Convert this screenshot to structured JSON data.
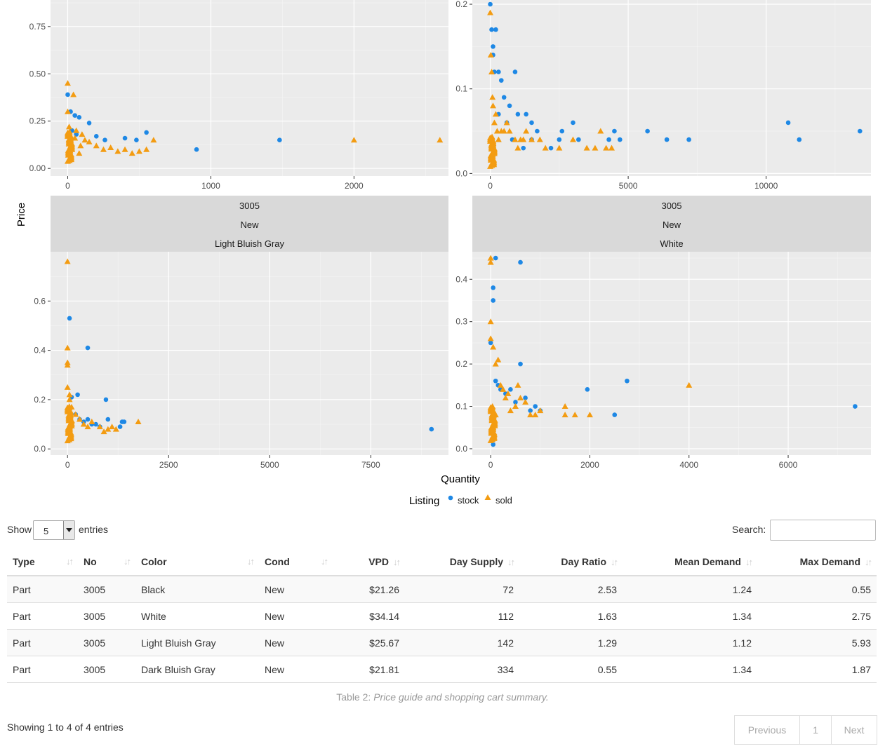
{
  "chart_data": {
    "type": "scatter",
    "ylabel": "Price",
    "xlabel": "Quantity",
    "legend": {
      "title": "Listing",
      "position": "bottom",
      "items": [
        {
          "name": "stock",
          "color": "#1e88e5",
          "shape": "circle"
        },
        {
          "name": "sold",
          "color": "#f39c12",
          "shape": "triangle"
        }
      ]
    },
    "panels": [
      {
        "id": "top-left",
        "strip": [],
        "xlim": [
          -120,
          2660
        ],
        "ylim": [
          -0.04,
          0.89
        ],
        "xticks": [
          0,
          1000,
          2000
        ],
        "yticks": [
          0,
          0.25,
          0.5,
          0.75
        ],
        "ytick_labels": [
          "0.00",
          "0.25",
          "0.50",
          "0.75"
        ],
        "stock": [
          [
            0,
            0.39
          ],
          [
            20,
            0.3
          ],
          [
            50,
            0.28
          ],
          [
            80,
            0.27
          ],
          [
            150,
            0.24
          ],
          [
            200,
            0.17
          ],
          [
            260,
            0.15
          ],
          [
            400,
            0.16
          ],
          [
            480,
            0.15
          ],
          [
            550,
            0.19
          ],
          [
            900,
            0.1
          ],
          [
            1480,
            0.15
          ],
          [
            30,
            0.2
          ],
          [
            60,
            0.18
          ],
          [
            10,
            0.13
          ]
        ],
        "sold": [
          [
            0,
            0.45
          ],
          [
            0,
            0.3
          ],
          [
            10,
            0.22
          ],
          [
            40,
            0.39
          ],
          [
            60,
            0.2
          ],
          [
            100,
            0.18
          ],
          [
            120,
            0.15
          ],
          [
            150,
            0.14
          ],
          [
            200,
            0.12
          ],
          [
            250,
            0.1
          ],
          [
            300,
            0.11
          ],
          [
            350,
            0.09
          ],
          [
            400,
            0.1
          ],
          [
            450,
            0.08
          ],
          [
            500,
            0.09
          ],
          [
            550,
            0.1
          ],
          [
            600,
            0.15
          ],
          [
            2000,
            0.15
          ],
          [
            2600,
            0.15
          ],
          [
            20,
            0.12
          ],
          [
            30,
            0.1
          ],
          [
            50,
            0.16
          ],
          [
            80,
            0.08
          ],
          [
            90,
            0.12
          ]
        ]
      },
      {
        "id": "top-right",
        "strip": [],
        "xlim": [
          -650,
          13800
        ],
        "ylim": [
          -0.003,
          0.205
        ],
        "xticks": [
          0,
          5000,
          10000
        ],
        "yticks": [
          0,
          0.1,
          0.2
        ],
        "ytick_labels": [
          "0.0",
          "0.1",
          "0.2"
        ],
        "stock": [
          [
            0,
            0.2
          ],
          [
            50,
            0.17
          ],
          [
            200,
            0.17
          ],
          [
            100,
            0.15
          ],
          [
            100,
            0.14
          ],
          [
            150,
            0.12
          ],
          [
            300,
            0.12
          ],
          [
            400,
            0.11
          ],
          [
            900,
            0.12
          ],
          [
            500,
            0.09
          ],
          [
            700,
            0.08
          ],
          [
            1000,
            0.07
          ],
          [
            1300,
            0.07
          ],
          [
            1500,
            0.06
          ],
          [
            1700,
            0.05
          ],
          [
            2500,
            0.04
          ],
          [
            2600,
            0.05
          ],
          [
            3000,
            0.06
          ],
          [
            3200,
            0.04
          ],
          [
            4300,
            0.04
          ],
          [
            4500,
            0.05
          ],
          [
            4700,
            0.04
          ],
          [
            5700,
            0.05
          ],
          [
            6400,
            0.04
          ],
          [
            7200,
            0.04
          ],
          [
            10800,
            0.06
          ],
          [
            11200,
            0.04
          ],
          [
            13400,
            0.05
          ],
          [
            800,
            0.04
          ],
          [
            1200,
            0.03
          ],
          [
            1500,
            0.04
          ],
          [
            2200,
            0.03
          ],
          [
            300,
            0.07
          ],
          [
            600,
            0.06
          ]
        ],
        "sold": [
          [
            0,
            0.19
          ],
          [
            20,
            0.14
          ],
          [
            50,
            0.12
          ],
          [
            80,
            0.09
          ],
          [
            100,
            0.08
          ],
          [
            150,
            0.06
          ],
          [
            200,
            0.07
          ],
          [
            250,
            0.05
          ],
          [
            300,
            0.04
          ],
          [
            400,
            0.05
          ],
          [
            500,
            0.05
          ],
          [
            600,
            0.06
          ],
          [
            700,
            0.05
          ],
          [
            900,
            0.04
          ],
          [
            1000,
            0.03
          ],
          [
            1100,
            0.04
          ],
          [
            1200,
            0.04
          ],
          [
            1500,
            0.04
          ],
          [
            2000,
            0.03
          ],
          [
            2500,
            0.03
          ],
          [
            3000,
            0.04
          ],
          [
            3500,
            0.03
          ],
          [
            4000,
            0.05
          ],
          [
            4200,
            0.03
          ],
          [
            4400,
            0.03
          ],
          [
            1800,
            0.04
          ],
          [
            1300,
            0.05
          ],
          [
            3800,
            0.03
          ]
        ]
      },
      {
        "id": "bottom-left",
        "strip": [
          "3005",
          "New",
          "Light Bluish Gray"
        ],
        "xlim": [
          -420,
          9420
        ],
        "ylim": [
          -0.025,
          0.8
        ],
        "xticks": [
          0,
          2500,
          5000,
          7500
        ],
        "yticks": [
          0,
          0.2,
          0.4,
          0.6
        ],
        "ytick_labels": [
          "0.0",
          "0.2",
          "0.4",
          "0.6"
        ],
        "stock": [
          [
            50,
            0.53
          ],
          [
            500,
            0.41
          ],
          [
            100,
            0.21
          ],
          [
            250,
            0.22
          ],
          [
            400,
            0.11
          ],
          [
            500,
            0.12
          ],
          [
            700,
            0.1
          ],
          [
            800,
            0.09
          ],
          [
            950,
            0.2
          ],
          [
            1000,
            0.12
          ],
          [
            1350,
            0.11
          ],
          [
            1400,
            0.11
          ],
          [
            1300,
            0.09
          ],
          [
            9000,
            0.08
          ],
          [
            200,
            0.14
          ],
          [
            300,
            0.12
          ],
          [
            600,
            0.1
          ]
        ],
        "sold": [
          [
            0,
            0.76
          ],
          [
            0,
            0.41
          ],
          [
            0,
            0.35
          ],
          [
            0,
            0.34
          ],
          [
            0,
            0.25
          ],
          [
            50,
            0.2
          ],
          [
            100,
            0.17
          ],
          [
            200,
            0.14
          ],
          [
            300,
            0.12
          ],
          [
            400,
            0.1
          ],
          [
            600,
            0.11
          ],
          [
            800,
            0.09
          ],
          [
            1000,
            0.08
          ],
          [
            1100,
            0.09
          ],
          [
            1200,
            0.08
          ],
          [
            1750,
            0.11
          ],
          [
            900,
            0.07
          ],
          [
            500,
            0.09
          ],
          [
            50,
            0.22
          ]
        ]
      },
      {
        "id": "bottom-right",
        "strip": [
          "3005",
          "New",
          "White"
        ],
        "xlim": [
          -370,
          7670
        ],
        "ylim": [
          -0.015,
          0.465
        ],
        "xticks": [
          0,
          2000,
          4000,
          6000
        ],
        "yticks": [
          0,
          0.1,
          0.2,
          0.3,
          0.4
        ],
        "ytick_labels": [
          "0.0",
          "0.1",
          "0.2",
          "0.3",
          "0.4"
        ],
        "stock": [
          [
            100,
            0.45
          ],
          [
            600,
            0.44
          ],
          [
            50,
            0.38
          ],
          [
            50,
            0.35
          ],
          [
            0,
            0.25
          ],
          [
            600,
            0.2
          ],
          [
            100,
            0.16
          ],
          [
            150,
            0.15
          ],
          [
            200,
            0.14
          ],
          [
            400,
            0.14
          ],
          [
            700,
            0.12
          ],
          [
            800,
            0.09
          ],
          [
            900,
            0.1
          ],
          [
            1000,
            0.09
          ],
          [
            1950,
            0.14
          ],
          [
            2750,
            0.16
          ],
          [
            2500,
            0.08
          ],
          [
            7350,
            0.1
          ],
          [
            50,
            0.01
          ],
          [
            300,
            0.13
          ],
          [
            500,
            0.11
          ]
        ],
        "sold": [
          [
            0,
            0.45
          ],
          [
            0,
            0.44
          ],
          [
            0,
            0.3
          ],
          [
            0,
            0.26
          ],
          [
            50,
            0.24
          ],
          [
            100,
            0.2
          ],
          [
            150,
            0.21
          ],
          [
            200,
            0.15
          ],
          [
            250,
            0.14
          ],
          [
            300,
            0.12
          ],
          [
            350,
            0.13
          ],
          [
            400,
            0.09
          ],
          [
            500,
            0.1
          ],
          [
            550,
            0.15
          ],
          [
            600,
            0.12
          ],
          [
            700,
            0.11
          ],
          [
            800,
            0.08
          ],
          [
            900,
            0.08
          ],
          [
            1000,
            0.09
          ],
          [
            1500,
            0.1
          ],
          [
            1500,
            0.08
          ],
          [
            1700,
            0.08
          ],
          [
            2000,
            0.08
          ],
          [
            4000,
            0.15
          ],
          [
            50,
            0.05
          ],
          [
            100,
            0.08
          ]
        ]
      }
    ]
  },
  "controls": {
    "show_label": "Show",
    "page_length": "5",
    "entries_label": "entries",
    "search_label": "Search:",
    "search_value": ""
  },
  "table": {
    "columns": [
      "Type",
      "No",
      "Color",
      "Cond",
      "VPD",
      "Day Supply",
      "Day Ratio",
      "Mean Demand",
      "Max Demand"
    ],
    "rows": [
      [
        "Part",
        "3005",
        "Black",
        "New",
        "$21.26",
        "72",
        "2.53",
        "1.24",
        "0.55"
      ],
      [
        "Part",
        "3005",
        "White",
        "New",
        "$34.14",
        "112",
        "1.63",
        "1.34",
        "2.75"
      ],
      [
        "Part",
        "3005",
        "Light Bluish Gray",
        "New",
        "$25.67",
        "142",
        "1.29",
        "1.12",
        "5.93"
      ],
      [
        "Part",
        "3005",
        "Dark Bluish Gray",
        "New",
        "$21.81",
        "334",
        "0.55",
        "1.34",
        "1.87"
      ]
    ],
    "caption_prefix": "Table 2:",
    "caption_text": "Price guide and shopping cart summary."
  },
  "footer": {
    "info": "Showing 1 to 4 of 4 entries",
    "previous": "Previous",
    "page": "1",
    "next": "Next"
  },
  "colors": {
    "panel_bg": "#ebebeb",
    "strip_bg": "#d9d9d9",
    "stock": "#1e88e5",
    "sold": "#f39c12"
  }
}
